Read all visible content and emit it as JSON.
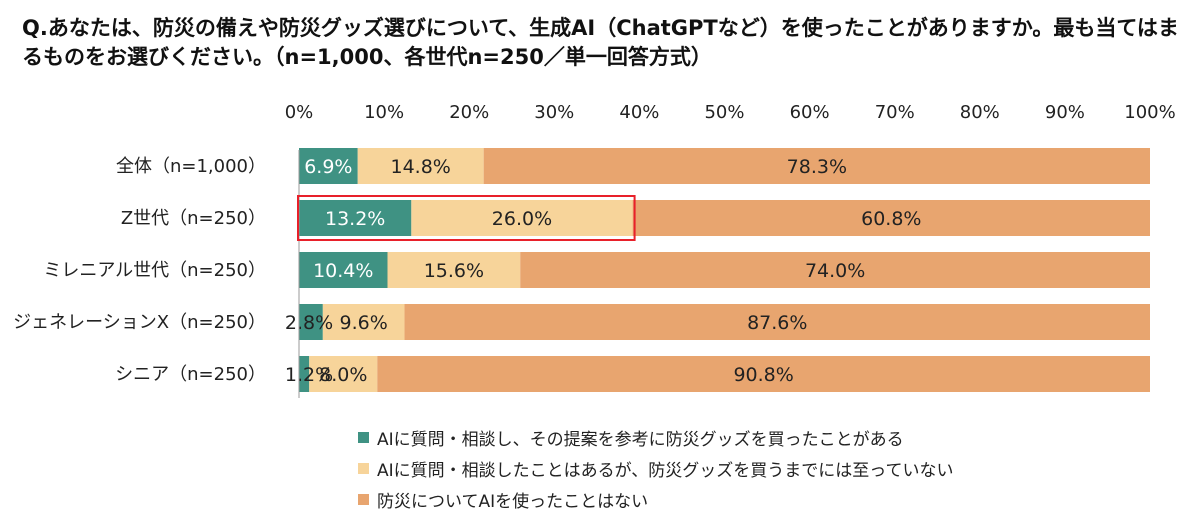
{
  "question": "Q.あなたは、防災の備えや防災グッズ選びについて、生成AI（ChatGPTなど）を使ったことがありますか。最も当てはまるものをお選びください。（n=1,000、各世代n=250／単一回答方式）",
  "colors": {
    "used": "#3f9283",
    "consulted": "#f7d49a",
    "never": "#e8a56f",
    "highlight": "#e8202a",
    "axis": "#999999"
  },
  "chart_data": {
    "type": "bar",
    "orientation": "horizontal",
    "stacked": true,
    "xlim": [
      0,
      100
    ],
    "x_ticks": [
      "0%",
      "10%",
      "20%",
      "30%",
      "40%",
      "50%",
      "60%",
      "70%",
      "80%",
      "90%",
      "100%"
    ],
    "categories": [
      "全体（n=1,000）",
      "Z世代（n=250）",
      "ミレニアル世代（n=250）",
      "ジェネレーションX（n=250）",
      "シニア（n=250）"
    ],
    "series": [
      {
        "name": "AIに質問・相談し、その提案を参考に防災グッズを買ったことがある",
        "values": [
          6.9,
          13.2,
          10.4,
          2.8,
          1.2
        ]
      },
      {
        "name": "AIに質問・相談したことはあるが、防災グッズを買うまでには至っていない",
        "values": [
          14.8,
          26.0,
          15.6,
          9.6,
          8.0
        ]
      },
      {
        "name": "防災についてAIを使ったことはない",
        "values": [
          78.3,
          60.8,
          74.0,
          87.6,
          90.8
        ]
      }
    ],
    "data_labels": [
      [
        "6.9%",
        "14.8%",
        "78.3%"
      ],
      [
        "13.2%",
        "26.0%",
        "60.8%"
      ],
      [
        "10.4%",
        "15.6%",
        "74.0%"
      ],
      [
        "2.8%",
        "9.6%",
        "87.6%"
      ],
      [
        "1.2%",
        "8.0%",
        "90.8%"
      ]
    ],
    "highlight": {
      "row": 1,
      "series": [
        0,
        1
      ]
    },
    "legend_position": "bottom"
  }
}
